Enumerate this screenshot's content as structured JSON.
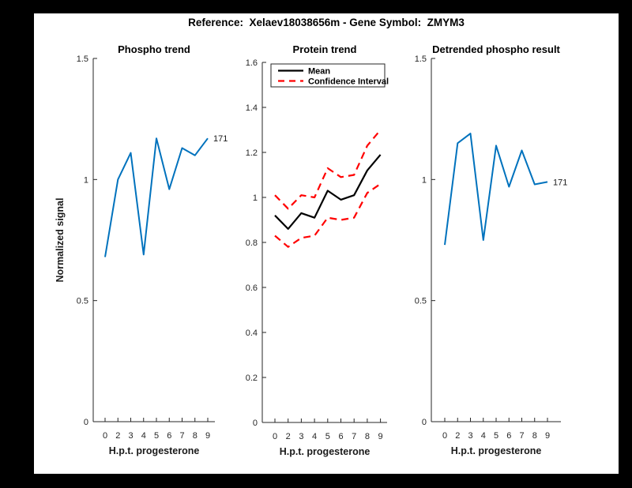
{
  "figure": {
    "title": "Reference:  Xelaev18038656m - Gene Symbol:  ZMYM3",
    "background_color": "#000000",
    "canvas_color": "#ffffff",
    "accent_blue": "#0072BD",
    "accent_red": "#ff0000"
  },
  "chart_data": [
    {
      "type": "line",
      "title": "Phospho trend",
      "xlabel": "H.p.t. progesterone",
      "ylabel": "Normalized signal",
      "x_ticklabels": [
        "0",
        "2",
        "3",
        "4",
        "5",
        "6",
        "7",
        "8",
        "9"
      ],
      "y_ticks": [
        "0",
        "0.5",
        "1",
        "1.5"
      ],
      "y_tick_values": [
        0,
        0.5,
        1,
        1.5
      ],
      "ylim": [
        0,
        1.5
      ],
      "grid": false,
      "series": [
        {
          "name": "phospho-signal",
          "color": "#0072BD",
          "dash": null,
          "width": 2,
          "values": [
            0.68,
            1.0,
            1.11,
            0.69,
            1.17,
            0.96,
            1.13,
            1.1,
            1.17
          ]
        }
      ],
      "end_label": "171",
      "legend": null
    },
    {
      "type": "line",
      "title": "Protein trend",
      "xlabel": "H.p.t. progesterone",
      "ylabel": null,
      "x_ticklabels": [
        "0",
        "2",
        "3",
        "4",
        "5",
        "6",
        "7",
        "8",
        "9"
      ],
      "y_ticks": [
        "0",
        "0.2",
        "0.4",
        "0.6",
        "0.8",
        "1",
        "1.2",
        "1.4",
        "1.6"
      ],
      "y_tick_values": [
        0,
        0.2,
        0.4,
        0.6,
        0.8,
        1,
        1.2,
        1.4,
        1.6
      ],
      "ylim": [
        0,
        1.6
      ],
      "grid": false,
      "series": [
        {
          "name": "mean",
          "color": "#000000",
          "dash": null,
          "width": 2.2,
          "values": [
            0.92,
            0.86,
            0.93,
            0.91,
            1.03,
            0.99,
            1.01,
            1.12,
            1.19
          ]
        },
        {
          "name": "confidence-interval-upper",
          "color": "#ff0000",
          "dash": "9 6",
          "width": 2.2,
          "values": [
            1.01,
            0.95,
            1.01,
            1.0,
            1.13,
            1.09,
            1.1,
            1.23,
            1.3
          ]
        },
        {
          "name": "confidence-interval-lower",
          "color": "#ff0000",
          "dash": "9 6",
          "width": 2.2,
          "values": [
            0.83,
            0.78,
            0.82,
            0.83,
            0.91,
            0.9,
            0.91,
            1.02,
            1.06
          ]
        }
      ],
      "end_label": null,
      "legend": {
        "position": "upper-left",
        "entries": [
          {
            "label": "Mean",
            "series": 0
          },
          {
            "label": "Confidence Interval",
            "series": 1
          }
        ]
      }
    },
    {
      "type": "line",
      "title": "Detrended phospho result",
      "xlabel": "H.p.t. progesterone",
      "ylabel": null,
      "x_ticklabels": [
        "0",
        "2",
        "3",
        "4",
        "5",
        "6",
        "7",
        "8",
        "9"
      ],
      "y_ticks": [
        "0",
        "0.5",
        "1",
        "1.5"
      ],
      "y_tick_values": [
        0,
        0.5,
        1,
        1.5
      ],
      "ylim": [
        0,
        1.5
      ],
      "grid": false,
      "series": [
        {
          "name": "detrended-phospho-signal",
          "color": "#0072BD",
          "dash": null,
          "width": 2,
          "values": [
            0.73,
            1.15,
            1.19,
            0.75,
            1.14,
            0.97,
            1.12,
            0.98,
            0.99
          ]
        }
      ],
      "end_label": "171",
      "legend": null
    }
  ]
}
